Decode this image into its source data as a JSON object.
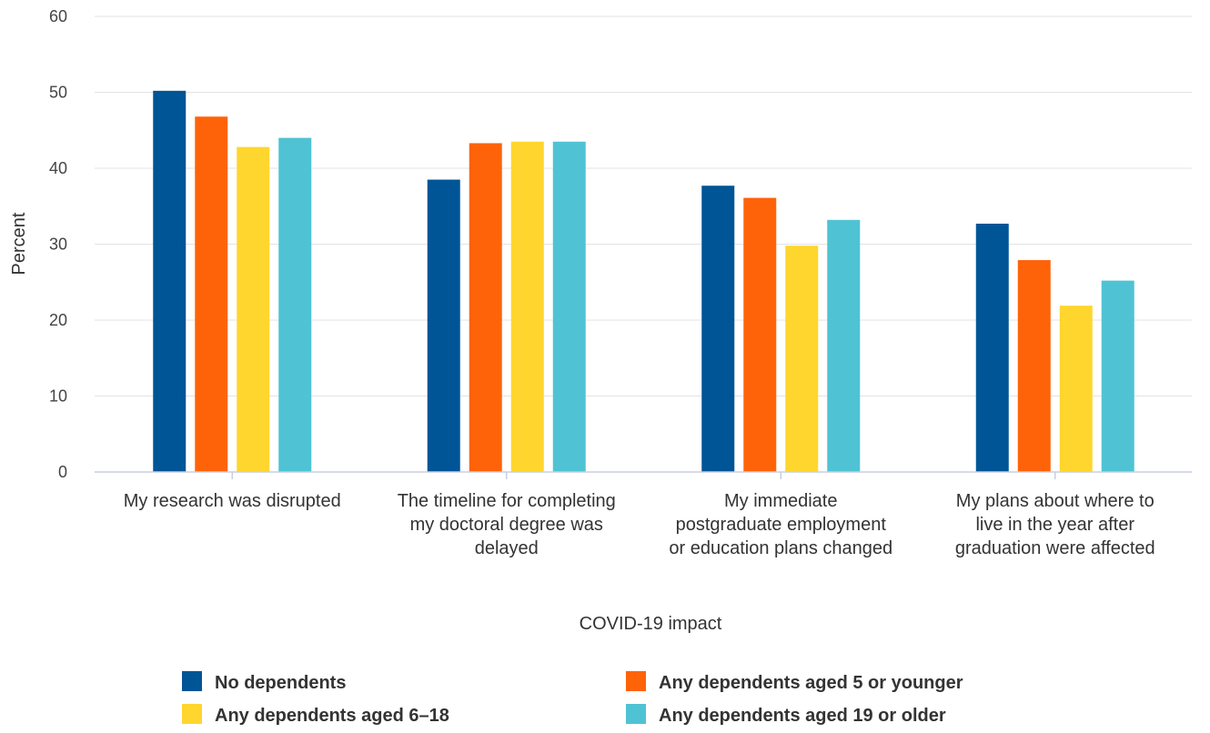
{
  "chart_data": {
    "type": "bar",
    "xlabel": "COVID-19 impact",
    "ylabel": "Percent",
    "ylim": [
      0,
      60
    ],
    "yticks": [
      0,
      10,
      20,
      30,
      40,
      50,
      60
    ],
    "grid": true,
    "legend_position": "bottom",
    "categories": [
      [
        "My research was disrupted"
      ],
      [
        "The timeline for completing",
        "my doctoral degree was",
        "delayed"
      ],
      [
        "My immediate",
        "postgraduate employment",
        "or education plans changed"
      ],
      [
        "My plans about where to",
        "live in the year after",
        "graduation were affected"
      ]
    ],
    "series": [
      {
        "name": "No dependents",
        "color": "#005596",
        "values": [
          50.2,
          38.5,
          37.7,
          32.7
        ]
      },
      {
        "name": "Any dependents aged 5 or younger",
        "color": "#FF6309",
        "values": [
          46.8,
          43.3,
          36.1,
          27.9
        ]
      },
      {
        "name": "Any dependents aged 6–18",
        "color": "#FFD62E",
        "values": [
          42.8,
          43.5,
          29.8,
          21.9
        ]
      },
      {
        "name": "Any dependents aged 19 or older",
        "color": "#4FC3D3",
        "values": [
          44.0,
          43.5,
          33.2,
          25.2
        ]
      }
    ]
  }
}
